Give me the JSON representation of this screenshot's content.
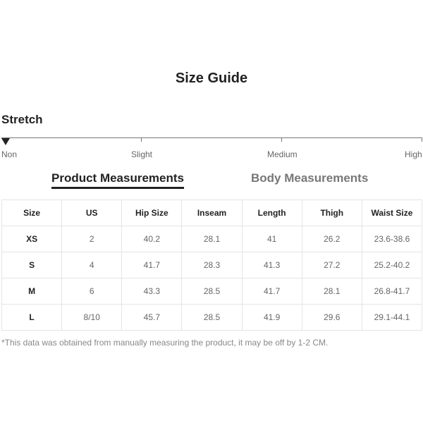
{
  "title": "Size Guide",
  "stretch": {
    "label": "Stretch",
    "levels": [
      "Non",
      "Slight",
      "Medium",
      "High"
    ],
    "selected": "Non"
  },
  "tabs": [
    {
      "label": "Product Measurements",
      "active": true
    },
    {
      "label": "Body Measurements",
      "active": false
    }
  ],
  "table": {
    "headers": [
      "Size",
      "US",
      "Hip Size",
      "Inseam",
      "Length",
      "Thigh",
      "Waist Size"
    ],
    "rows": [
      [
        "XS",
        "2",
        "40.2",
        "28.1",
        "41",
        "26.2",
        "23.6-38.6"
      ],
      [
        "S",
        "4",
        "41.7",
        "28.3",
        "41.3",
        "27.2",
        "25.2-40.2"
      ],
      [
        "M",
        "6",
        "43.3",
        "28.5",
        "41.7",
        "28.1",
        "26.8-41.7"
      ],
      [
        "L",
        "8/10",
        "45.7",
        "28.5",
        "41.9",
        "29.6",
        "29.1-44.1"
      ]
    ]
  },
  "note": "*This data was obtained from manually measuring the product, it may be off by 1-2 CM."
}
